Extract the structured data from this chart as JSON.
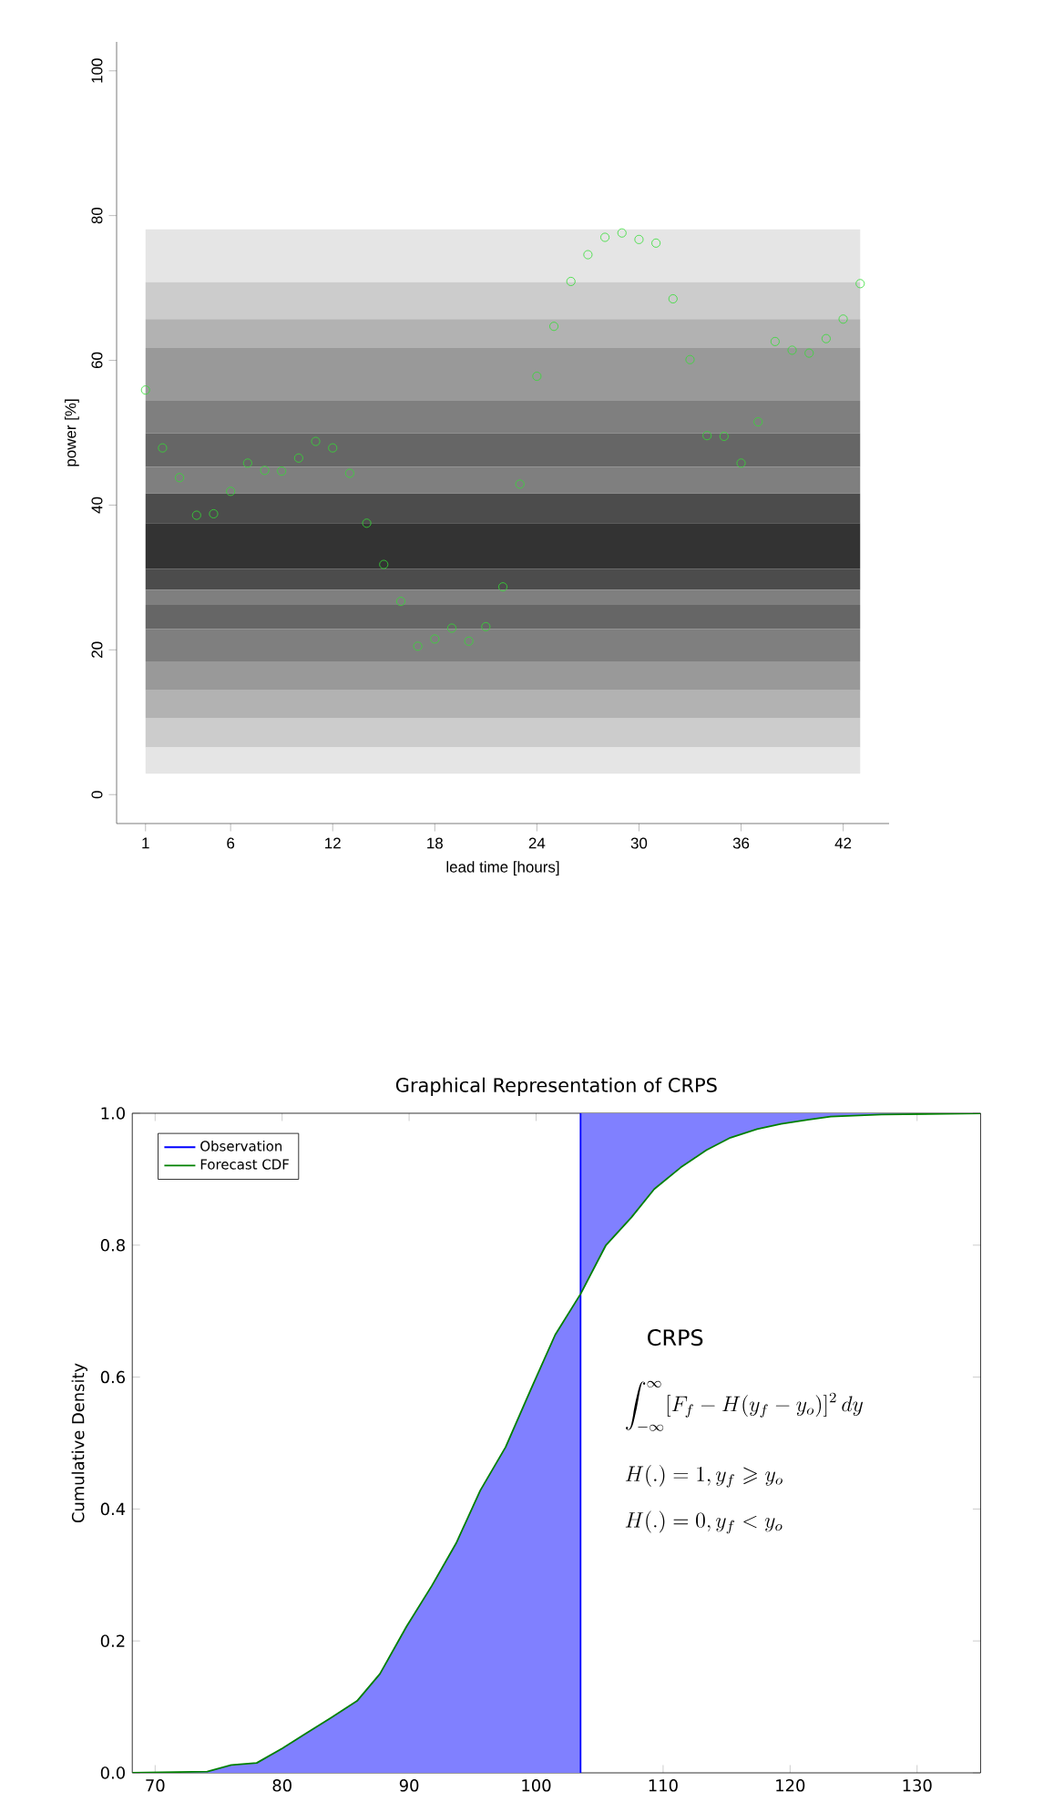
{
  "chart_data": [
    {
      "type": "scatter",
      "xlabel": "lead time [hours]",
      "ylabel": "power [%]",
      "color": "#33dd33",
      "marker": "circle",
      "x": [
        1,
        2,
        3,
        4,
        5,
        6,
        7,
        8,
        9,
        10,
        11,
        12,
        13,
        14,
        15,
        16,
        17,
        18,
        19,
        20,
        21,
        22,
        23,
        24,
        25,
        26,
        27,
        28,
        29,
        30,
        31,
        32,
        33,
        34,
        35,
        36,
        37,
        38,
        39,
        40,
        41,
        42,
        43
      ],
      "values": [
        55.9,
        47.9,
        43.8,
        38.6,
        38.8,
        41.9,
        45.8,
        44.8,
        44.7,
        46.5,
        48.8,
        47.9,
        44.4,
        37.5,
        31.8,
        26.7,
        20.5,
        21.5,
        23.0,
        21.2,
        23.2,
        28.7,
        42.9,
        57.8,
        64.7,
        70.9,
        74.6,
        77.0,
        77.6,
        76.7,
        76.2,
        68.5,
        60.1,
        49.6,
        49.5,
        45.8,
        51.5,
        62.6,
        61.4,
        61.0,
        63.0,
        65.7,
        70.6
      ],
      "xlim": [
        -0.7,
        44.7
      ],
      "ylim": [
        -4,
        104
      ],
      "xticks": [
        1,
        6,
        12,
        18,
        24,
        30,
        36,
        42
      ],
      "yticks": [
        0,
        20,
        40,
        60,
        80,
        100
      ],
      "bands": [
        {
          "axis": "y",
          "from": 70.8,
          "to": 78.1,
          "color": "#e5e5e5"
        },
        {
          "axis": "y",
          "from": 65.7,
          "to": 70.8,
          "color": "#cccccc"
        },
        {
          "axis": "y",
          "from": 61.7,
          "to": 65.7,
          "color": "#b2b2b2"
        },
        {
          "axis": "y",
          "from": 54.4,
          "to": 61.7,
          "color": "#999999"
        },
        {
          "axis": "y",
          "from": 49.9,
          "to": 54.4,
          "color": "#7f7f7f"
        },
        {
          "axis": "y",
          "from": 45.3,
          "to": 49.9,
          "color": "#666666"
        },
        {
          "axis": "y",
          "from": 41.6,
          "to": 45.3,
          "color": "#7f7f7f"
        },
        {
          "axis": "y",
          "from": 37.5,
          "to": 41.6,
          "color": "#4c4c4c"
        },
        {
          "axis": "y",
          "from": 31.2,
          "to": 37.5,
          "color": "#333333"
        },
        {
          "axis": "y",
          "from": 28.3,
          "to": 31.2,
          "color": "#4c4c4c"
        },
        {
          "axis": "y",
          "from": 26.2,
          "to": 28.3,
          "color": "#7f7f7f"
        },
        {
          "axis": "y",
          "from": 22.9,
          "to": 26.2,
          "color": "#666666"
        },
        {
          "axis": "y",
          "from": 18.4,
          "to": 22.9,
          "color": "#7f7f7f"
        },
        {
          "axis": "y",
          "from": 14.4,
          "to": 18.4,
          "color": "#999999"
        },
        {
          "axis": "y",
          "from": 10.6,
          "to": 14.4,
          "color": "#b2b2b2"
        },
        {
          "axis": "y",
          "from": 6.5,
          "to": 10.6,
          "color": "#cccccc"
        },
        {
          "axis": "y",
          "from": 2.9,
          "to": 6.5,
          "color": "#e5e5e5"
        }
      ]
    },
    {
      "type": "line",
      "title": "Graphical Representation of CRPS",
      "ylabel": "Cumulative Density",
      "legend": "top left",
      "xlim": [
        68.2,
        135
      ],
      "ylim": [
        0,
        1
      ],
      "xticks": [
        70,
        80,
        90,
        100,
        110,
        120,
        130
      ],
      "yticks": [
        {
          "value": 0,
          "label": "0.0"
        },
        {
          "value": 0.2,
          "label": "0.2"
        },
        {
          "value": 0.4,
          "label": "0.4"
        },
        {
          "value": 0.6,
          "label": "0.6"
        },
        {
          "value": 0.8,
          "label": "0.8"
        },
        {
          "value": 1,
          "label": "1.0"
        }
      ],
      "series": [
        {
          "name": "Observation",
          "color": "#0000ff",
          "x": [
            103.5,
            103.5
          ],
          "values": [
            0,
            1
          ]
        },
        {
          "name": "Forecast CDF",
          "color": "#008000",
          "x": [
            68.2,
            74.1,
            76.0,
            78.0,
            80.0,
            81.9,
            83.8,
            85.9,
            87.7,
            89.8,
            91.8,
            93.7,
            95.6,
            97.6,
            99.6,
            101.5,
            103.5,
            103.5,
            105.5,
            107.5,
            109.3,
            111.4,
            113.4,
            115.3,
            117.4,
            119.3,
            121.4,
            123.2,
            127.2,
            135
          ],
          "values": [
            0,
            0.002,
            0.012,
            0.015,
            0.037,
            0.06,
            0.083,
            0.109,
            0.15,
            0.222,
            0.284,
            0.348,
            0.428,
            0.494,
            0.582,
            0.664,
            0.726,
            0.726,
            0.8,
            0.842,
            0.885,
            0.918,
            0.944,
            0.963,
            0.976,
            0.984,
            0.99,
            0.995,
            0.998,
            1
          ],
          "lower": [
            0,
            0,
            0,
            0,
            0,
            0,
            0,
            0,
            0,
            0,
            0,
            0,
            0,
            0,
            0,
            0,
            0,
            0.726,
            0.8,
            0.842,
            0.885,
            0.918,
            0.944,
            0.963,
            0.976,
            0.984,
            0.99,
            0.995,
            0.998,
            1
          ],
          "upper": [
            0,
            0.002,
            0.012,
            0.015,
            0.037,
            0.06,
            0.083,
            0.109,
            0.15,
            0.222,
            0.284,
            0.348,
            0.428,
            0.494,
            0.582,
            0.664,
            0.726,
            1,
            1,
            1,
            1,
            1,
            1,
            1,
            1,
            1,
            1,
            1,
            1,
            1
          ]
        }
      ],
      "annotations": [
        "CRPS",
        "\\int_{-\\infty}^{\\infty}[F_f - H(y_f-y_o)]^2\\,dy",
        "H(.)=1, y_f\\geqslant y_o",
        "H(.)=0, y_f<y_o"
      ]
    }
  ]
}
